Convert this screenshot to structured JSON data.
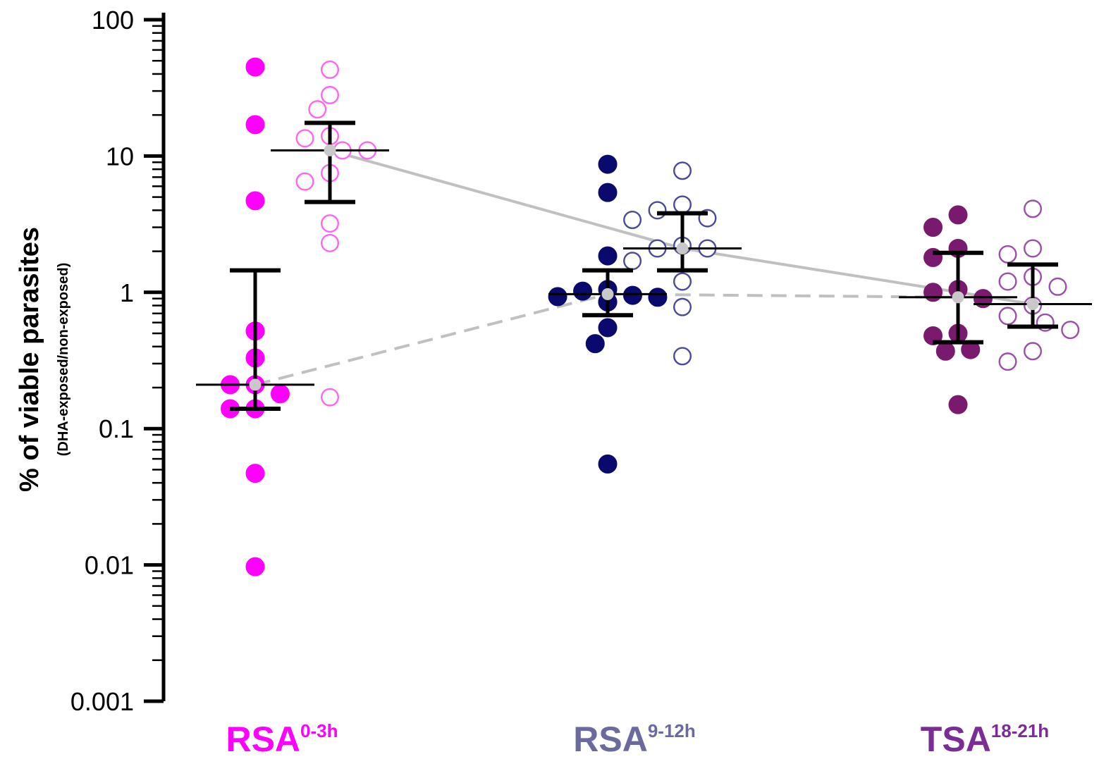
{
  "chart_data": {
    "type": "scatter",
    "y_scale": "log",
    "ylim": [
      0.001,
      100
    ],
    "yticks": [
      "100",
      "10",
      "1",
      "0.1",
      "0.01",
      "0.001"
    ],
    "ylabel": "% of viable parasites",
    "ylabel_sub": "(DHA-exposed/non-exposed)",
    "categories": [
      {
        "name": "RSA",
        "sup": "0-3h",
        "color": "#ff00ff"
      },
      {
        "name": "RSA",
        "sup": "9-12h",
        "color": "#6a6a9e"
      },
      {
        "name": "TSA",
        "sup": "18-21h",
        "color": "#7b2d96"
      }
    ],
    "groups": [
      {
        "category": 0,
        "fill": "filled",
        "color": "#ff00ff",
        "median": 0.21,
        "err_low": 0.14,
        "err_high": 1.45,
        "points": [
          45,
          17,
          4.7,
          0.52,
          0.33,
          0.21,
          0.21,
          0.18,
          0.14,
          0.14,
          0.047,
          0.0097
        ]
      },
      {
        "category": 0,
        "fill": "open",
        "color": "#ff66ee",
        "median": 11,
        "err_low": 4.6,
        "err_high": 17.5,
        "points": [
          43,
          28,
          22,
          14,
          13.5,
          11,
          11,
          7.5,
          6.5,
          3.2,
          2.3,
          0.17
        ]
      },
      {
        "category": 1,
        "fill": "filled",
        "color": "#0a0a6e",
        "median": 0.97,
        "err_low": 0.68,
        "err_high": 1.45,
        "points": [
          8.7,
          5.4,
          1.85,
          1.05,
          1.02,
          0.95,
          0.93,
          0.92,
          0.85,
          0.85,
          0.55,
          0.42,
          0.055
        ]
      },
      {
        "category": 1,
        "fill": "open",
        "color": "#4a4a9a",
        "median": 2.1,
        "err_low": 1.45,
        "err_high": 3.8,
        "points": [
          7.8,
          4.4,
          4.0,
          3.5,
          3.4,
          2.2,
          2.1,
          2.1,
          1.7,
          1.2,
          0.78,
          0.34
        ]
      },
      {
        "category": 2,
        "fill": "filled",
        "color": "#7a1a6e",
        "median": 0.92,
        "err_low": 0.43,
        "err_high": 1.95,
        "points": [
          3.7,
          3.0,
          2.1,
          1.8,
          1.05,
          1.0,
          0.9,
          0.5,
          0.48,
          0.38,
          0.37,
          0.15
        ]
      },
      {
        "category": 2,
        "fill": "open",
        "color": "#9a50a8",
        "median": 0.82,
        "err_low": 0.56,
        "err_high": 1.6,
        "points": [
          4.1,
          2.1,
          1.9,
          1.3,
          1.2,
          1.1,
          0.8,
          0.67,
          0.6,
          0.53,
          0.37,
          0.31
        ]
      }
    ],
    "lines": [
      {
        "style": "solid",
        "color": "#c0c0c0",
        "points": [
          [
            0,
            11
          ],
          [
            1,
            2.1
          ],
          [
            2,
            0.82
          ]
        ]
      },
      {
        "style": "dashed",
        "color": "#c0c0c0",
        "points": [
          [
            0,
            0.21
          ],
          [
            1,
            0.97
          ],
          [
            2,
            0.92
          ]
        ]
      }
    ]
  }
}
